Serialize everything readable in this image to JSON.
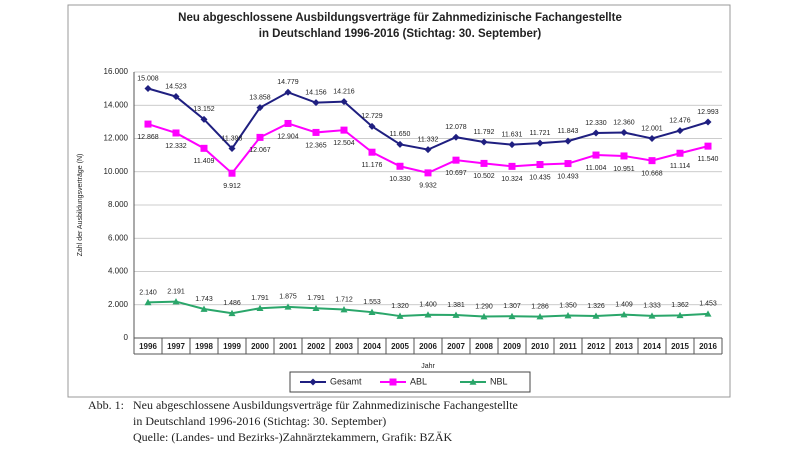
{
  "chart_data": {
    "type": "line",
    "title": [
      "Neu abgeschlossene Ausbildungsverträge für Zahnmedizinische Fachangestellte",
      "in Deutschland 1996-2016 (Stichtag: 30. September)"
    ],
    "y_label": "Zahl der Ausbildungsverträge (N)",
    "x_label": "Jahr",
    "categories": [
      "1996",
      "1997",
      "1998",
      "1999",
      "2000",
      "2001",
      "2002",
      "2003",
      "2004",
      "2005",
      "2006",
      "2007",
      "2008",
      "2009",
      "2010",
      "2011",
      "2012",
      "2013",
      "2014",
      "2015",
      "2016"
    ],
    "series": [
      {
        "name": "Gesamt",
        "color": "#1f1f80",
        "marker": "diamond",
        "values": [
          15008,
          14523,
          13152,
          11398,
          13858,
          14779,
          14156,
          14216,
          12729,
          11650,
          11332,
          12078,
          11792,
          11631,
          11721,
          11843,
          12330,
          12360,
          12001,
          12476,
          12993
        ],
        "value_labels": [
          "15.008",
          "14.523",
          "13.152",
          "11.398",
          "13.858",
          "14.779",
          "14.156",
          "14.216",
          "12.729",
          "11.650",
          "11.332",
          "12.078",
          "11.792",
          "11.631",
          "11.721",
          "11.843",
          "12.330",
          "12.360",
          "12.001",
          "12.476",
          "12.993"
        ]
      },
      {
        "name": "ABL",
        "color": "#ff00ff",
        "marker": "square",
        "values": [
          12868,
          12332,
          11409,
          9912,
          12067,
          12904,
          12365,
          12504,
          11176,
          10330,
          9932,
          10697,
          10502,
          10324,
          10435,
          10493,
          11004,
          10951,
          10668,
          11114,
          11540
        ],
        "value_labels": [
          "12.868",
          "12.332",
          "11.409",
          "9.912",
          "12.067",
          "12.904",
          "12.365",
          "12.504",
          "11.176",
          "10.330",
          "9.932",
          "10.697",
          "10.502",
          "10.324",
          "10.435",
          "10.493",
          "11.004",
          "10.951",
          "10.668",
          "11.114",
          "11.540"
        ]
      },
      {
        "name": "NBL",
        "color": "#2aa66a",
        "marker": "triangle",
        "values": [
          2140,
          2191,
          1743,
          1486,
          1791,
          1875,
          1791,
          1712,
          1553,
          1320,
          1400,
          1381,
          1290,
          1307,
          1286,
          1350,
          1326,
          1409,
          1333,
          1362,
          1453
        ],
        "value_labels": [
          "2.140",
          "2.191",
          "1.743",
          "1.486",
          "1.791",
          "1.875",
          "1.791",
          "1.712",
          "1.553",
          "1.320",
          "1.400",
          "1.381",
          "1.290",
          "1.307",
          "1.286",
          "1.350",
          "1.326",
          "1.409",
          "1.333",
          "1.362",
          "1.453"
        ]
      }
    ],
    "ylim": [
      0,
      16000
    ],
    "yticks": [
      0,
      {
        "value": 2000,
        "label": "2.000"
      },
      {
        "value": 4000,
        "label": "4.000"
      },
      {
        "value": 6000,
        "label": "6.000"
      },
      {
        "value": 8000,
        "label": "8.000"
      },
      {
        "value": 10000,
        "label": "10.000"
      },
      {
        "value": 12000,
        "label": "12.000"
      },
      {
        "value": 14000,
        "label": "14.000"
      },
      {
        "value": 16000,
        "label": "16.000"
      }
    ],
    "grid": true,
    "legend": "bottom"
  },
  "caption": {
    "label": "Abb. 1:",
    "lines": [
      "Neu abgeschlossene Ausbildungsverträge für Zahnmedizinische Fachangestellte",
      "in Deutschland 1996-2016 (Stichtag: 30. September)",
      "Quelle: (Landes- und Bezirks-)Zahnärztekammern, Grafik: BZÄK"
    ]
  }
}
